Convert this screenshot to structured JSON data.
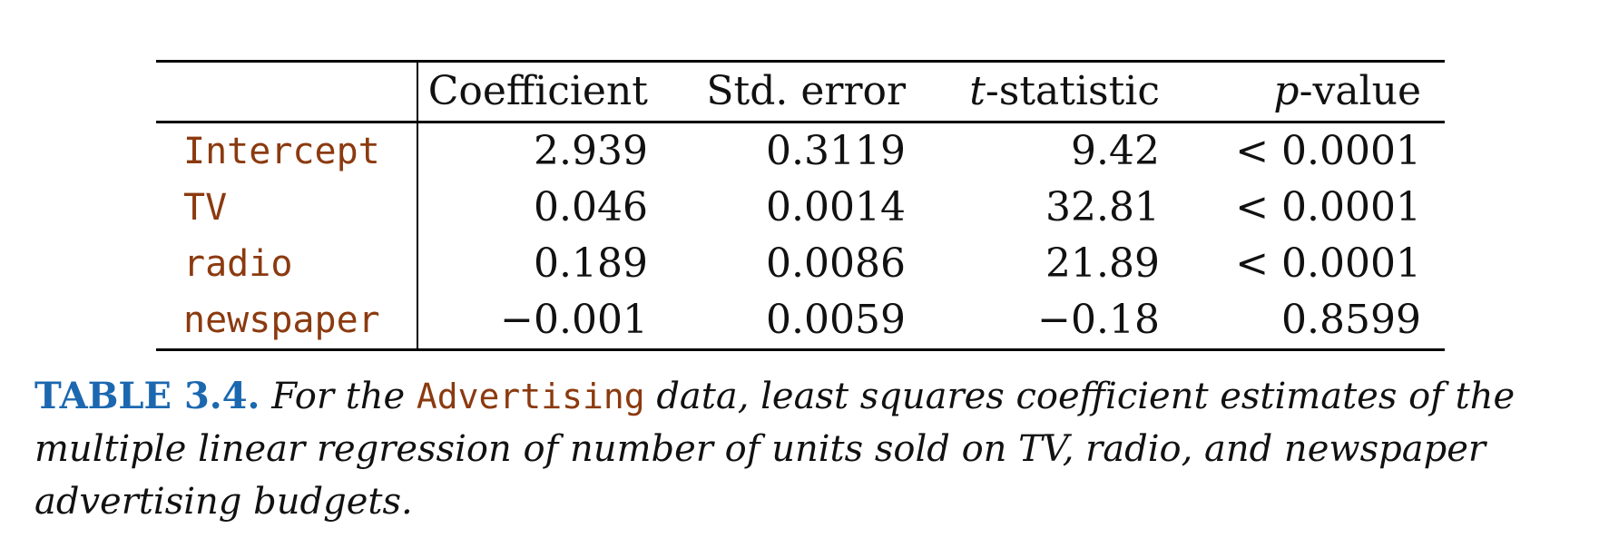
{
  "table": {
    "columns": [
      {
        "prefix": "",
        "rest": "Coefficient"
      },
      {
        "prefix": "",
        "rest": "Std. error"
      },
      {
        "prefix": "t",
        "rest": "-statistic"
      },
      {
        "prefix": "p",
        "rest": "-value"
      }
    ],
    "rows": [
      {
        "label": "Intercept",
        "values": [
          "2.939",
          "0.3119",
          "9.42",
          "< 0.0001"
        ]
      },
      {
        "label": "TV",
        "values": [
          "0.046",
          "0.0014",
          "32.81",
          "< 0.0001"
        ]
      },
      {
        "label": "radio",
        "values": [
          "0.189",
          "0.0086",
          "21.89",
          "< 0.0001"
        ]
      },
      {
        "label": "newspaper",
        "values": [
          "−0.001",
          "0.0059",
          "−0.18",
          "0.8599"
        ]
      }
    ]
  },
  "caption": {
    "label": "TABLE 3.4.",
    "text_before": "For the",
    "dataset": "Advertising",
    "text_after": "data, least squares coefficient estimates of the multiple linear regression of number of units sold on TV, radio, and newspaper advertising budgets."
  },
  "colors": {
    "caption_label": "#1c68b0",
    "code_text": "#8b3a0f"
  }
}
